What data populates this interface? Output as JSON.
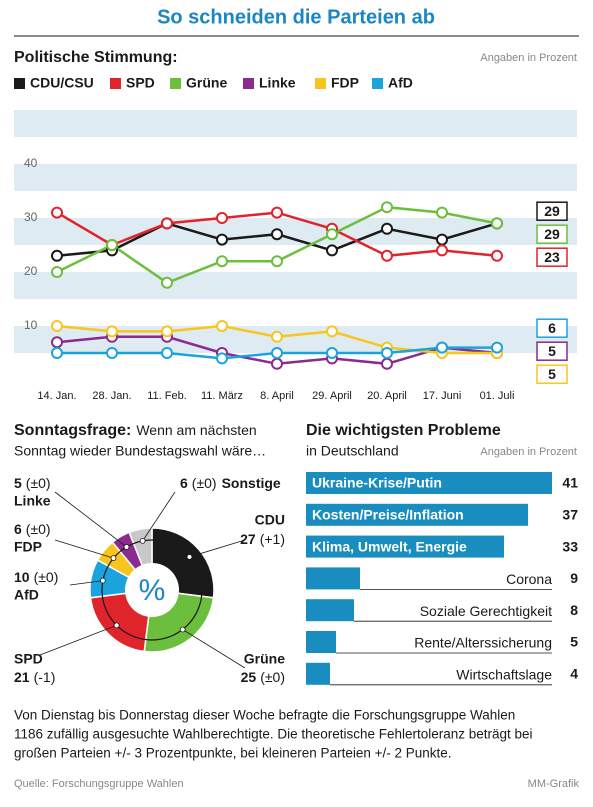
{
  "header": {
    "title": "So schneiden die Parteien ab"
  },
  "chart_data": [
    {
      "type": "line",
      "title": "Politische Stimmung:",
      "note": "Angaben in Prozent",
      "categories": [
        "14. Jan.",
        "28. Jan.",
        "11. Feb.",
        "11. März",
        "8. April",
        "29. April",
        "20. April",
        "17. Juni",
        "01. Juli"
      ],
      "series": [
        {
          "name": "CDU/CSU",
          "color": "#1a1a1a",
          "values": [
            23,
            24,
            29,
            26,
            27,
            24,
            28,
            26,
            29
          ]
        },
        {
          "name": "SPD",
          "color": "#e0242b",
          "values": [
            31,
            25,
            29,
            30,
            31,
            28,
            23,
            24,
            23
          ]
        },
        {
          "name": "Grüne",
          "color": "#6cbf3c",
          "values": [
            20,
            25,
            18,
            22,
            22,
            27,
            32,
            31,
            29
          ]
        },
        {
          "name": "Linke",
          "color": "#8b2a8f",
          "values": [
            7,
            8,
            8,
            5,
            3,
            4,
            3,
            6,
            5
          ]
        },
        {
          "name": "FDP",
          "color": "#f7c51e",
          "values": [
            10,
            9,
            9,
            10,
            8,
            9,
            6,
            5,
            5
          ]
        },
        {
          "name": "AfD",
          "color": "#1ba3dd",
          "values": [
            5,
            5,
            5,
            4,
            5,
            5,
            5,
            6,
            6
          ]
        }
      ],
      "ylim": [
        0,
        50
      ],
      "yticks": [
        10,
        20,
        30,
        40
      ],
      "grid": true
    },
    {
      "type": "pie",
      "title": "Sonntagsfrage:",
      "subtitle": [
        "Wenn am nächsten",
        "Sonntag wieder Bundestagswahl wäre…"
      ],
      "center_label": "%",
      "categories": [
        "CDU",
        "Grüne",
        "SPD",
        "AfD",
        "FDP",
        "Linke",
        "Sonstige"
      ],
      "values": [
        27,
        25,
        21,
        10,
        6,
        5,
        6
      ],
      "changes": [
        "(+1)",
        "(±0)",
        "(-1)",
        "(±0)",
        "(±0)",
        "(±0)",
        "(±0)"
      ],
      "colors": [
        "#1a1a1a",
        "#6cbf3c",
        "#e0242b",
        "#1ba3dd",
        "#f7c51e",
        "#8b2a8f",
        "#c8c8c8"
      ]
    },
    {
      "type": "bar",
      "orientation": "horizontal",
      "title": "Die wichtigsten Probleme",
      "subtitle": "in Deutschland",
      "note": "Angaben in Prozent",
      "categories": [
        "Ukraine-Krise/Putin",
        "Kosten/Preise/Inflation",
        "Klima, Umwelt, Energie",
        "Corona",
        "Soziale Gerechtigkeit",
        "Rente/Alterssicherung",
        "Wirtschaftslage"
      ],
      "values": [
        41,
        37,
        33,
        9,
        8,
        5,
        4
      ],
      "color": "#1a8dc0"
    }
  ],
  "footer": {
    "lines": [
      "Von Dienstag bis Donnerstag dieser Woche befragte die Forschungsgruppe Wahlen",
      "1186 zufällig ausgesuchte Wahlberechtigte. Die theoretische Fehlertoleranz beträgt bei",
      "großen Parteien +/- 3 Prozentpunkte, bei kleineren Parteien +/- 2 Punkte."
    ],
    "source": "Quelle: Forschungsgruppe Wahlen",
    "credit": "MM-Grafik"
  }
}
